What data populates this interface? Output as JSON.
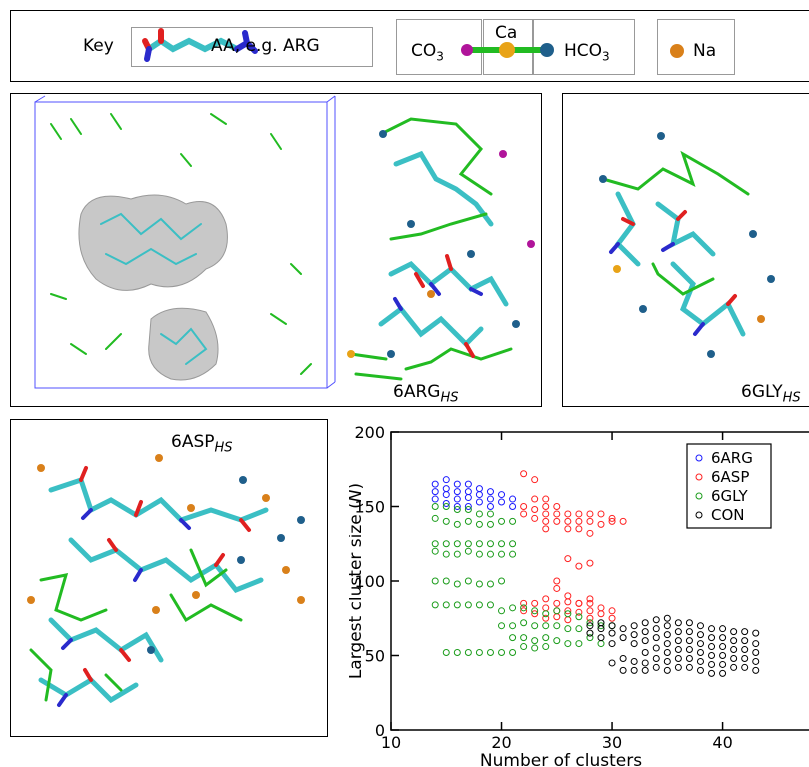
{
  "key": {
    "title": "Key",
    "aa_label": "AA, e.g. ARG",
    "co3_label": "CO",
    "co3_sub": "3",
    "ca_label": "Ca",
    "hco3_label": "HCO",
    "hco3_sub": "3",
    "na_label": "Na",
    "colors": {
      "co3": "#b0149a",
      "ca": "#e8a317",
      "hco3": "#1f5f8b",
      "na": "#d9801a",
      "bond": "#22bb22",
      "aa_carbon": "#3bbfc4"
    }
  },
  "panels": {
    "arg": {
      "label": "6ARG",
      "sub": "HS"
    },
    "gly": {
      "label": "6GLY",
      "sub": "HS"
    },
    "asp": {
      "label": "6ASP",
      "sub": "HS"
    }
  },
  "chart_data": {
    "type": "scatter",
    "xlabel": "Number of clusters",
    "ylabel_prefix": "Largest cluster size (",
    "ylabel_var": "N",
    "ylabel_suffix": ")",
    "xlim": [
      10,
      48
    ],
    "ylim": [
      0,
      200
    ],
    "xticks": [
      10,
      20,
      30,
      40
    ],
    "yticks": [
      0,
      50,
      100,
      150,
      200
    ],
    "legend_position": "top-right",
    "series": [
      {
        "name": "6ARG",
        "color": "#1a1aff",
        "points": [
          [
            14,
            165
          ],
          [
            14,
            160
          ],
          [
            14,
            155
          ],
          [
            15,
            168
          ],
          [
            15,
            162
          ],
          [
            15,
            158
          ],
          [
            15,
            152
          ],
          [
            16,
            165
          ],
          [
            16,
            160
          ],
          [
            16,
            155
          ],
          [
            16,
            150
          ],
          [
            17,
            165
          ],
          [
            17,
            160
          ],
          [
            17,
            156
          ],
          [
            17,
            150
          ],
          [
            18,
            162
          ],
          [
            18,
            158
          ],
          [
            18,
            153
          ],
          [
            19,
            160
          ],
          [
            19,
            155
          ],
          [
            19,
            150
          ],
          [
            20,
            158
          ],
          [
            20,
            153
          ],
          [
            21,
            155
          ],
          [
            21,
            150
          ]
        ]
      },
      {
        "name": "6ASP",
        "color": "#ff2020",
        "points": [
          [
            22,
            172
          ],
          [
            22,
            150
          ],
          [
            22,
            145
          ],
          [
            23,
            168
          ],
          [
            23,
            155
          ],
          [
            23,
            148
          ],
          [
            23,
            142
          ],
          [
            24,
            155
          ],
          [
            24,
            150
          ],
          [
            24,
            145
          ],
          [
            24,
            140
          ],
          [
            24,
            135
          ],
          [
            25,
            150
          ],
          [
            25,
            145
          ],
          [
            25,
            140
          ],
          [
            25,
            100
          ],
          [
            25,
            95
          ],
          [
            26,
            145
          ],
          [
            26,
            140
          ],
          [
            26,
            135
          ],
          [
            26,
            115
          ],
          [
            26,
            90
          ],
          [
            27,
            145
          ],
          [
            27,
            140
          ],
          [
            27,
            135
          ],
          [
            27,
            110
          ],
          [
            27,
            85
          ],
          [
            28,
            145
          ],
          [
            28,
            140
          ],
          [
            28,
            132
          ],
          [
            28,
            112
          ],
          [
            28,
            88
          ],
          [
            29,
            145
          ],
          [
            29,
            138
          ],
          [
            30,
            142
          ],
          [
            30,
            140
          ],
          [
            31,
            140
          ],
          [
            22,
            85
          ],
          [
            22,
            80
          ],
          [
            23,
            85
          ],
          [
            23,
            78
          ],
          [
            24,
            88
          ],
          [
            24,
            82
          ],
          [
            24,
            75
          ],
          [
            25,
            85
          ],
          [
            25,
            80
          ],
          [
            25,
            76
          ],
          [
            26,
            86
          ],
          [
            26,
            80
          ],
          [
            26,
            74
          ],
          [
            27,
            85
          ],
          [
            27,
            79
          ],
          [
            28,
            85
          ],
          [
            28,
            80
          ],
          [
            28,
            75
          ],
          [
            29,
            82
          ],
          [
            29,
            78
          ],
          [
            30,
            80
          ],
          [
            30,
            75
          ]
        ]
      },
      {
        "name": "6GLY",
        "color": "#1a9c1a",
        "points": [
          [
            14,
            150
          ],
          [
            14,
            142
          ],
          [
            14,
            125
          ],
          [
            14,
            120
          ],
          [
            14,
            100
          ],
          [
            14,
            84
          ],
          [
            15,
            150
          ],
          [
            15,
            140
          ],
          [
            15,
            125
          ],
          [
            15,
            118
          ],
          [
            15,
            100
          ],
          [
            15,
            84
          ],
          [
            15,
            52
          ],
          [
            16,
            148
          ],
          [
            16,
            138
          ],
          [
            16,
            125
          ],
          [
            16,
            118
          ],
          [
            16,
            98
          ],
          [
            16,
            84
          ],
          [
            16,
            52
          ],
          [
            17,
            148
          ],
          [
            17,
            140
          ],
          [
            17,
            125
          ],
          [
            17,
            120
          ],
          [
            17,
            100
          ],
          [
            17,
            84
          ],
          [
            17,
            52
          ],
          [
            18,
            145
          ],
          [
            18,
            138
          ],
          [
            18,
            125
          ],
          [
            18,
            118
          ],
          [
            18,
            98
          ],
          [
            18,
            84
          ],
          [
            18,
            52
          ],
          [
            19,
            145
          ],
          [
            19,
            138
          ],
          [
            19,
            125
          ],
          [
            19,
            118
          ],
          [
            19,
            98
          ],
          [
            19,
            84
          ],
          [
            19,
            52
          ],
          [
            20,
            140
          ],
          [
            20,
            125
          ],
          [
            20,
            118
          ],
          [
            20,
            100
          ],
          [
            20,
            80
          ],
          [
            20,
            70
          ],
          [
            20,
            52
          ],
          [
            21,
            140
          ],
          [
            21,
            125
          ],
          [
            21,
            118
          ],
          [
            21,
            82
          ],
          [
            21,
            70
          ],
          [
            21,
            62
          ],
          [
            21,
            52
          ],
          [
            22,
            82
          ],
          [
            22,
            72
          ],
          [
            22,
            62
          ],
          [
            22,
            56
          ],
          [
            23,
            80
          ],
          [
            23,
            70
          ],
          [
            23,
            60
          ],
          [
            23,
            55
          ],
          [
            24,
            78
          ],
          [
            24,
            70
          ],
          [
            24,
            62
          ],
          [
            24,
            56
          ],
          [
            25,
            80
          ],
          [
            25,
            70
          ],
          [
            25,
            60
          ],
          [
            26,
            78
          ],
          [
            26,
            68
          ],
          [
            26,
            58
          ],
          [
            27,
            76
          ],
          [
            27,
            68
          ],
          [
            27,
            58
          ],
          [
            28,
            72
          ],
          [
            28,
            62
          ],
          [
            29,
            70
          ],
          [
            29,
            58
          ],
          [
            30,
            70
          ]
        ]
      },
      {
        "name": "CON",
        "color": "#000000",
        "points": [
          [
            28,
            70
          ],
          [
            28,
            65
          ],
          [
            29,
            72
          ],
          [
            29,
            68
          ],
          [
            29,
            62
          ],
          [
            30,
            70
          ],
          [
            30,
            65
          ],
          [
            30,
            58
          ],
          [
            30,
            45
          ],
          [
            31,
            68
          ],
          [
            31,
            62
          ],
          [
            31,
            48
          ],
          [
            31,
            40
          ],
          [
            32,
            70
          ],
          [
            32,
            64
          ],
          [
            32,
            58
          ],
          [
            32,
            46
          ],
          [
            32,
            40
          ],
          [
            33,
            72
          ],
          [
            33,
            66
          ],
          [
            33,
            60
          ],
          [
            33,
            52
          ],
          [
            33,
            45
          ],
          [
            33,
            40
          ],
          [
            34,
            74
          ],
          [
            34,
            68
          ],
          [
            34,
            62
          ],
          [
            34,
            55
          ],
          [
            34,
            48
          ],
          [
            34,
            42
          ],
          [
            35,
            75
          ],
          [
            35,
            70
          ],
          [
            35,
            64
          ],
          [
            35,
            58
          ],
          [
            35,
            52
          ],
          [
            35,
            46
          ],
          [
            35,
            40
          ],
          [
            36,
            72
          ],
          [
            36,
            66
          ],
          [
            36,
            60
          ],
          [
            36,
            54
          ],
          [
            36,
            48
          ],
          [
            36,
            42
          ],
          [
            37,
            72
          ],
          [
            37,
            66
          ],
          [
            37,
            60
          ],
          [
            37,
            54
          ],
          [
            37,
            48
          ],
          [
            37,
            42
          ],
          [
            38,
            70
          ],
          [
            38,
            64
          ],
          [
            38,
            58
          ],
          [
            38,
            52
          ],
          [
            38,
            46
          ],
          [
            38,
            40
          ],
          [
            39,
            68
          ],
          [
            39,
            62
          ],
          [
            39,
            56
          ],
          [
            39,
            50
          ],
          [
            39,
            44
          ],
          [
            39,
            38
          ],
          [
            40,
            68
          ],
          [
            40,
            62
          ],
          [
            40,
            56
          ],
          [
            40,
            50
          ],
          [
            40,
            44
          ],
          [
            40,
            38
          ],
          [
            41,
            66
          ],
          [
            41,
            60
          ],
          [
            41,
            54
          ],
          [
            41,
            48
          ],
          [
            41,
            42
          ],
          [
            42,
            66
          ],
          [
            42,
            60
          ],
          [
            42,
            54
          ],
          [
            42,
            48
          ],
          [
            42,
            42
          ],
          [
            43,
            65
          ],
          [
            43,
            58
          ],
          [
            43,
            52
          ],
          [
            43,
            46
          ],
          [
            43,
            40
          ]
        ]
      }
    ]
  }
}
